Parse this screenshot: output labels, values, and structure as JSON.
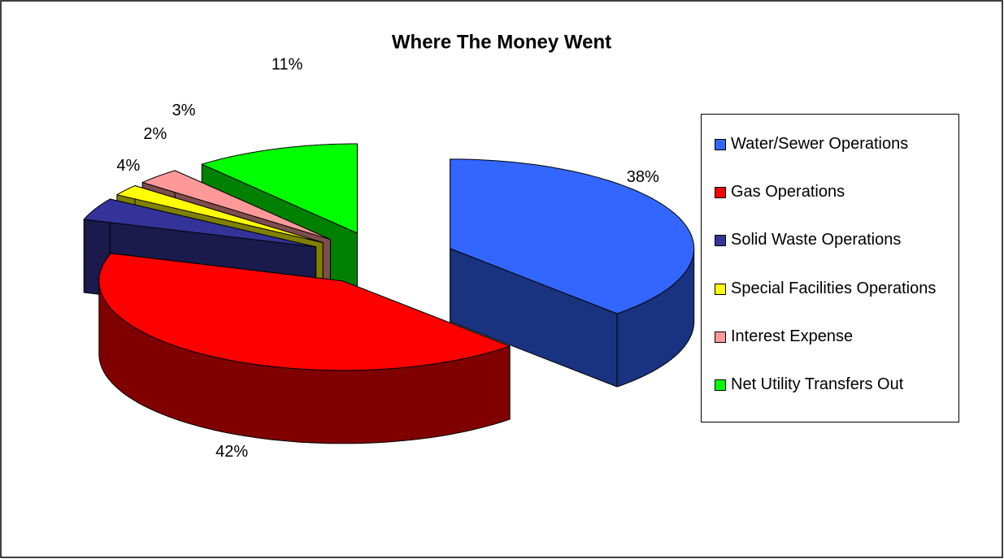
{
  "chart_data": {
    "type": "pie3d",
    "title": "Where The Money Went",
    "categories": [
      "Water/Sewer Operations",
      "Gas Operations",
      "Solid Waste Operations",
      "Special Facilities Operations",
      "Interest Expense",
      "Net Utility Transfers Out"
    ],
    "values": [
      38,
      42,
      4,
      2,
      3,
      11
    ],
    "value_labels": [
      "38%",
      "42%",
      "4%",
      "2%",
      "3%",
      "11%"
    ],
    "colors": [
      "#3366ff",
      "#ff0000",
      "#333399",
      "#ffff00",
      "#ff9999",
      "#00ff00"
    ],
    "legend": "right"
  }
}
